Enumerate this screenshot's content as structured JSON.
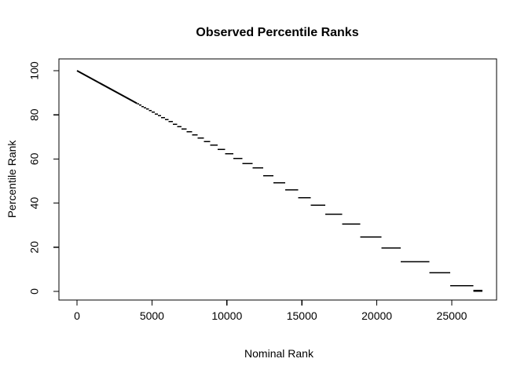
{
  "figure": {
    "background_color": "#ffffff",
    "foreground_color": "#000000"
  },
  "chart_data": {
    "type": "line",
    "subtype": "staircase-of-horizontal-segments",
    "title": "Observed Percentile Ranks",
    "xlabel": "Nominal Rank",
    "ylabel": "Percentile Rank",
    "xlim": [
      0,
      27050
    ],
    "ylim": [
      0,
      100
    ],
    "grid": false,
    "legend": false,
    "series_color": "#000000",
    "x_ticks": [
      0,
      5000,
      10000,
      15000,
      20000,
      25000
    ],
    "x_tick_labels": [
      "0",
      "5000",
      "10000",
      "15000",
      "20000",
      "25000"
    ],
    "y_ticks": [
      0,
      20,
      40,
      60,
      80,
      100
    ],
    "y_tick_labels": [
      "0",
      "20",
      "40",
      "60",
      "80",
      "100"
    ],
    "head_line": {
      "x1": 0,
      "y1": 100,
      "x2": 4000,
      "y2": 85.2
    },
    "segments_note": "each entry is [nominal_rank_start, nominal_rank_end, percentile_rank]",
    "segments": [
      [
        4000,
        4143,
        84.9
      ],
      [
        4143,
        4294,
        84.4
      ],
      [
        4294,
        4453,
        83.8
      ],
      [
        4453,
        4621,
        83.2
      ],
      [
        4621,
        4799,
        82.6
      ],
      [
        4799,
        4987,
        81.9
      ],
      [
        4987,
        5186,
        81.2
      ],
      [
        5186,
        5397,
        80.4
      ],
      [
        5397,
        5621,
        79.6
      ],
      [
        5621,
        5860,
        78.7
      ],
      [
        5860,
        6114,
        77.8
      ],
      [
        6114,
        6385,
        76.9
      ],
      [
        6385,
        6674,
        75.8
      ],
      [
        6674,
        6983,
        74.7
      ],
      [
        6983,
        7313,
        73.5
      ],
      [
        7313,
        7667,
        72.3
      ],
      [
        7667,
        8047,
        70.9
      ],
      [
        8047,
        8456,
        69.4
      ],
      [
        8456,
        8896,
        67.9
      ],
      [
        8896,
        9371,
        66.2
      ],
      [
        9371,
        9884,
        64.3
      ],
      [
        9884,
        10440,
        62.4
      ],
      [
        10440,
        11044,
        60.3
      ],
      [
        11044,
        11701,
        58.0
      ],
      [
        11701,
        12417,
        56.0
      ],
      [
        12417,
        13100,
        52.4
      ],
      [
        13100,
        13900,
        49.2
      ],
      [
        13900,
        14750,
        46.0
      ],
      [
        14750,
        15600,
        42.4
      ],
      [
        15600,
        16550,
        39.1
      ],
      [
        16550,
        17700,
        35.0
      ],
      [
        17700,
        18900,
        30.6
      ],
      [
        18900,
        20300,
        24.6
      ],
      [
        20300,
        21600,
        19.6
      ],
      [
        21600,
        23500,
        13.4
      ],
      [
        23500,
        24900,
        8.5
      ],
      [
        24900,
        26450,
        2.5
      ],
      [
        26450,
        27050,
        0.3
      ]
    ]
  }
}
